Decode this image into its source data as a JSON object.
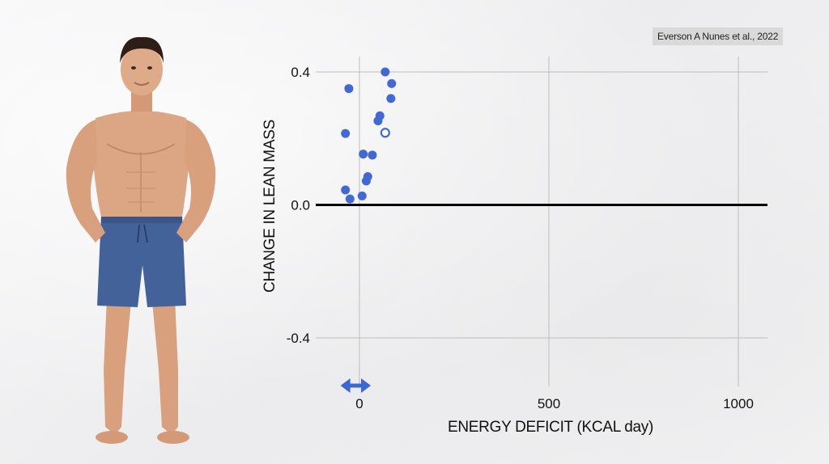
{
  "citation": "Everson A Nunes et al., 2022",
  "figure": {
    "subject": "person-illustration"
  },
  "colors": {
    "point": "#4169d6",
    "arrow": "#3a67d4",
    "zero_line": "#000000",
    "grid": "#bdbdbd",
    "shorts": "#44629a"
  },
  "chart_data": {
    "type": "scatter",
    "title": "",
    "xlabel": "ENERGY DEFICIT (KCAL day)",
    "ylabel": "CHANGE IN LEAN MASS",
    "xlim": [
      -30,
      1080
    ],
    "ylim": [
      -0.4,
      0.4
    ],
    "x_ticks": [
      0,
      500,
      1000
    ],
    "x_tick_labels": [
      "0",
      "500",
      "1000"
    ],
    "y_ticks": [
      0.4,
      0.0,
      -0.4
    ],
    "y_tick_labels": [
      "0.4",
      "0.0",
      "-0.4"
    ],
    "grid": true,
    "points": [
      {
        "x": 68,
        "y": 0.4,
        "filled": true
      },
      {
        "x": 85,
        "y": 0.365,
        "filled": true
      },
      {
        "x": -28,
        "y": 0.35,
        "filled": true
      },
      {
        "x": 83,
        "y": 0.32,
        "filled": true
      },
      {
        "x": 54,
        "y": 0.268,
        "filled": true
      },
      {
        "x": 49,
        "y": 0.253,
        "filled": true
      },
      {
        "x": 68,
        "y": 0.217,
        "filled": false
      },
      {
        "x": -37,
        "y": 0.215,
        "filled": true
      },
      {
        "x": 10,
        "y": 0.153,
        "filled": true
      },
      {
        "x": 34,
        "y": 0.15,
        "filled": true
      },
      {
        "x": 22,
        "y": 0.085,
        "filled": true
      },
      {
        "x": 18,
        "y": 0.072,
        "filled": true
      },
      {
        "x": -37,
        "y": 0.045,
        "filled": true
      },
      {
        "x": 7,
        "y": 0.027,
        "filled": true
      },
      {
        "x": -25,
        "y": 0.018,
        "filled": true
      }
    ],
    "range_marker": {
      "x_from": -50,
      "x_to": 30
    }
  }
}
